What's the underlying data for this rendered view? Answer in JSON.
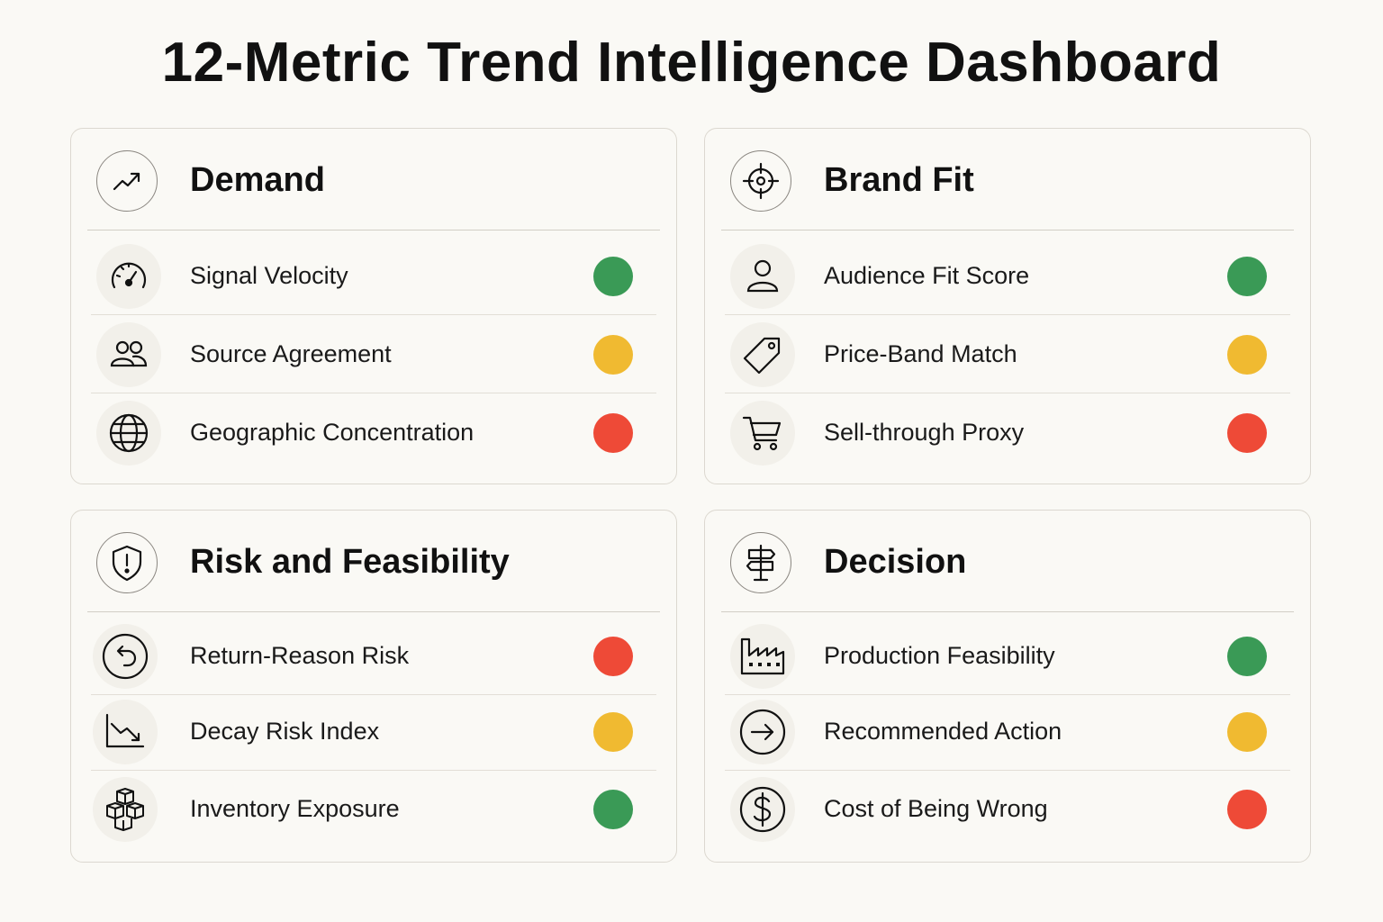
{
  "title": "12-Metric Trend Intelligence Dashboard",
  "status_colors": {
    "green": "#3a9a56",
    "yellow": "#f0ba31",
    "red": "#ee4a37"
  },
  "cards": [
    {
      "title": "Demand",
      "icon": "trend-up-icon",
      "rows": [
        {
          "label": "Signal Velocity",
          "icon": "speedometer-icon",
          "status": "green"
        },
        {
          "label": "Source Agreement",
          "icon": "users-icon",
          "status": "yellow"
        },
        {
          "label": "Geographic Concentration",
          "icon": "globe-icon",
          "status": "red"
        }
      ]
    },
    {
      "title": "Brand Fit",
      "icon": "target-icon",
      "rows": [
        {
          "label": "Audience Fit Score",
          "icon": "person-icon",
          "status": "green"
        },
        {
          "label": "Price-Band Match",
          "icon": "price-tag-icon",
          "status": "yellow"
        },
        {
          "label": "Sell-through Proxy",
          "icon": "shopping-cart-icon",
          "status": "red"
        }
      ]
    },
    {
      "title": "Risk and Feasibility",
      "icon": "shield-alert-icon",
      "rows": [
        {
          "label": "Return-Reason Risk",
          "icon": "return-arrow-icon",
          "status": "red"
        },
        {
          "label": "Decay Risk Index",
          "icon": "trend-down-icon",
          "status": "yellow"
        },
        {
          "label": "Inventory Exposure",
          "icon": "boxes-icon",
          "status": "green"
        }
      ]
    },
    {
      "title": "Decision",
      "icon": "signpost-icon",
      "rows": [
        {
          "label": "Production Feasibility",
          "icon": "factory-icon",
          "status": "green"
        },
        {
          "label": "Recommended Action",
          "icon": "arrow-right-circle-icon",
          "status": "yellow"
        },
        {
          "label": "Cost of Being Wrong",
          "icon": "dollar-circle-icon",
          "status": "red"
        }
      ]
    }
  ]
}
